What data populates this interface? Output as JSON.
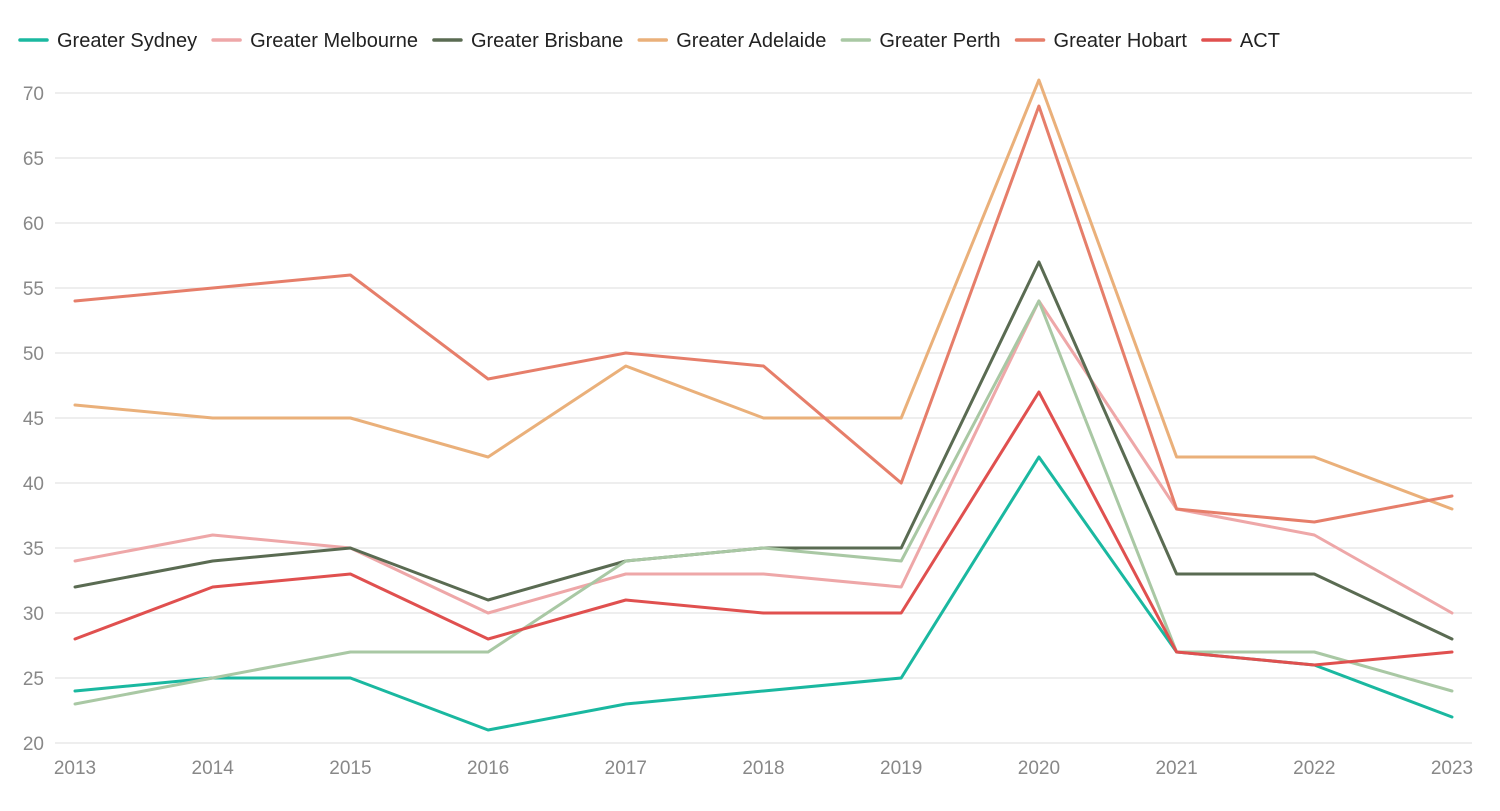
{
  "chart_data": {
    "type": "line",
    "title": "",
    "xlabel": "",
    "ylabel": "",
    "ylim": [
      20,
      71
    ],
    "yticks": [
      20,
      25,
      30,
      35,
      40,
      45,
      50,
      55,
      60,
      65,
      70
    ],
    "legend_position": "top-left",
    "grid": true,
    "x": [
      "2013",
      "2014",
      "2015",
      "2016",
      "2017",
      "2018",
      "2019",
      "2020",
      "2021",
      "2022",
      "2023"
    ],
    "series": [
      {
        "name": "Greater Sydney",
        "color": "#1ab8a0",
        "values": [
          24,
          25,
          25,
          21,
          23,
          24,
          25,
          42,
          27,
          26,
          22
        ]
      },
      {
        "name": "Greater Melbourne",
        "color": "#eea7a8",
        "values": [
          34,
          36,
          35,
          30,
          33,
          33,
          32,
          54,
          38,
          36,
          30
        ]
      },
      {
        "name": "Greater Brisbane",
        "color": "#5a6b52",
        "values": [
          32,
          34,
          35,
          31,
          34,
          35,
          35,
          57,
          33,
          33,
          28
        ]
      },
      {
        "name": "Greater Adelaide",
        "color": "#eab07a",
        "values": [
          46,
          45,
          45,
          42,
          49,
          45,
          45,
          71,
          42,
          42,
          38
        ]
      },
      {
        "name": "Greater Perth",
        "color": "#a9c8a4",
        "values": [
          23,
          25,
          27,
          27,
          34,
          35,
          34,
          54,
          27,
          27,
          24
        ]
      },
      {
        "name": "Greater Hobart",
        "color": "#e67e6a",
        "values": [
          54,
          55,
          56,
          48,
          50,
          49,
          40,
          69,
          38,
          37,
          39
        ]
      },
      {
        "name": "ACT",
        "color": "#e0504f",
        "values": [
          28,
          32,
          33,
          28,
          31,
          30,
          30,
          47,
          27,
          26,
          27
        ]
      }
    ]
  }
}
